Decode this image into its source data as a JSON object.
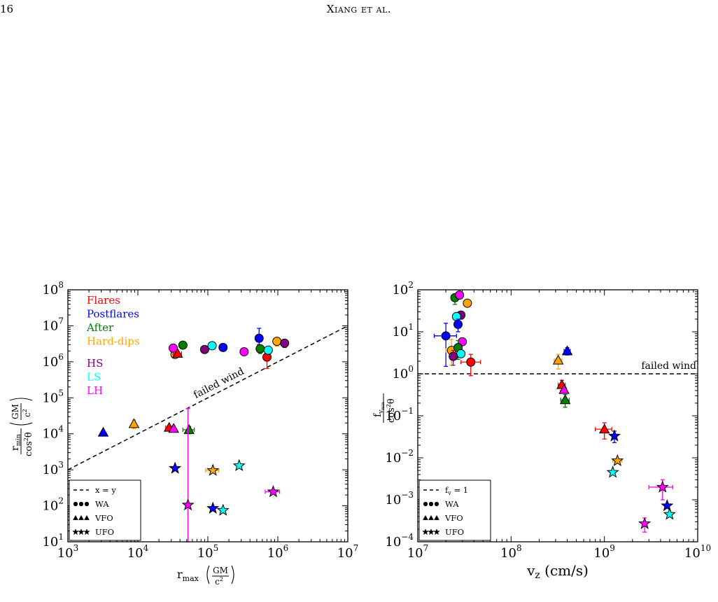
{
  "page": {
    "number": "16",
    "running_head": "Xiang et al."
  },
  "chart_data": [
    {
      "type": "scatter",
      "xscale": "log",
      "yscale": "log",
      "xlim": [
        1000,
        10000000
      ],
      "ylim": [
        10,
        100000000
      ],
      "x_ticks": [
        {
          "v": 1000,
          "b": "10",
          "e": "3"
        },
        {
          "v": 10000,
          "b": "10",
          "e": "4"
        },
        {
          "v": 100000,
          "b": "10",
          "e": "5"
        },
        {
          "v": 1000000,
          "b": "10",
          "e": "6"
        },
        {
          "v": 10000000,
          "b": "10",
          "e": "7"
        }
      ],
      "y_ticks": [
        {
          "v": 10,
          "b": "10",
          "e": "1"
        },
        {
          "v": 100,
          "b": "10",
          "e": "2"
        },
        {
          "v": 1000,
          "b": "10",
          "e": "3"
        },
        {
          "v": 10000,
          "b": "10",
          "e": "4"
        },
        {
          "v": 100000,
          "b": "10",
          "e": "5"
        },
        {
          "v": 1000000,
          "b": "10",
          "e": "6"
        },
        {
          "v": 10000000,
          "b": "10",
          "e": "7"
        },
        {
          "v": 100000000,
          "b": "10",
          "e": "8"
        }
      ],
      "xlabel": {
        "base": "r",
        "sub": "max",
        "frac_num": "GM",
        "frac_den": "c",
        "frac_den_sup": "2"
      },
      "ylabel": {
        "base": "r",
        "sub": "min",
        "frac_num": "GM",
        "frac_den": "c",
        "frac_den_sup": "2",
        "den": "cos",
        "den_sup": "2",
        "den_tail": "θ"
      },
      "reference_line": {
        "style": "dashed",
        "label": "failed wind",
        "x": [
          1000,
          10000000
        ],
        "y": [
          1000,
          10000000
        ]
      },
      "group_legend": {
        "placement": "top-left",
        "entries": [
          {
            "label": "Flares",
            "color": "#ff0000"
          },
          {
            "label": "Postflares",
            "color": "#0000ff"
          },
          {
            "label": "After",
            "color": "#008000"
          },
          {
            "label": "Hard-dips",
            "color": "#ffa500"
          },
          {
            "label": "HS",
            "color": "#800080"
          },
          {
            "label": "LS",
            "color": "#00ffff"
          },
          {
            "label": "LH",
            "color": "#ff00ff"
          }
        ]
      },
      "marker_legend": {
        "placement": "lower-left",
        "entries": [
          {
            "label": "x = y",
            "kind": "line"
          },
          {
            "label": "WA",
            "kind": "circle"
          },
          {
            "label": "VFO",
            "kind": "triangle"
          },
          {
            "label": "UFO",
            "kind": "star"
          }
        ]
      },
      "points": [
        {
          "g": "Flares",
          "m": "circle",
          "x": 700000,
          "y": 1350000,
          "yerr": [
            700000,
            800000
          ]
        },
        {
          "g": "Postflares",
          "m": "circle",
          "x": 540000,
          "y": 4500000,
          "yerr": [
            1500000,
            4000000
          ]
        },
        {
          "g": "Postflares",
          "m": "circle",
          "x": 165000,
          "y": 2500000
        },
        {
          "g": "After",
          "m": "circle",
          "x": 44000,
          "y": 2900000
        },
        {
          "g": "After",
          "m": "circle",
          "x": 560000,
          "y": 2300000,
          "yerr": [
            600000,
            600000
          ]
        },
        {
          "g": "Hard-dips",
          "m": "circle",
          "x": 34000,
          "y": 1600000
        },
        {
          "g": "Hard-dips",
          "m": "circle",
          "x": 970000,
          "y": 3700000,
          "yerr": [
            1000000,
            800000
          ]
        },
        {
          "g": "HS",
          "m": "circle",
          "x": 90000,
          "y": 2200000
        },
        {
          "g": "HS",
          "m": "circle",
          "x": 1250000,
          "y": 3300000,
          "yerr": [
            800000,
            800000
          ]
        },
        {
          "g": "LS",
          "m": "circle",
          "x": 115000,
          "y": 2800000
        },
        {
          "g": "LS",
          "m": "circle",
          "x": 730000,
          "y": 2100000
        },
        {
          "g": "LH",
          "m": "circle",
          "x": 32000,
          "y": 2400000
        },
        {
          "g": "LH",
          "m": "circle",
          "x": 330000,
          "y": 1900000
        },
        {
          "g": "Postflares",
          "m": "triangle",
          "x": 3200,
          "y": 11000
        },
        {
          "g": "Hard-dips",
          "m": "triangle",
          "x": 8800,
          "y": 19000,
          "yerr": [
            5000,
            5000
          ]
        },
        {
          "g": "Flares",
          "m": "triangle",
          "x": 28000,
          "y": 15000,
          "xerr": [
            3000,
            3000
          ]
        },
        {
          "g": "LH",
          "m": "triangle",
          "x": 32500,
          "y": 14000
        },
        {
          "g": "After",
          "m": "triangle",
          "x": 54000,
          "y": 13000,
          "xerr": [
            10000,
            10000
          ],
          "yerr": [
            3000,
            3000
          ]
        },
        {
          "g": "Flares",
          "m": "triangle",
          "x": 37000,
          "y": 1700000,
          "xerr": [
            5000,
            5000
          ]
        },
        {
          "g": "Postflares",
          "m": "star",
          "x": 34000,
          "y": 1100
        },
        {
          "g": "Hard-dips",
          "m": "star",
          "x": 118000,
          "y": 960,
          "xerr": [
            25000,
            25000
          ]
        },
        {
          "g": "LS",
          "m": "star",
          "x": 280000,
          "y": 1300
        },
        {
          "g": "LH",
          "m": "star",
          "x": 860000,
          "y": 245,
          "xerr": [
            200000,
            200000
          ]
        },
        {
          "g": "LH",
          "m": "star",
          "x": 52000,
          "y": 105,
          "yerr": [
            50000,
            50000
          ]
        },
        {
          "g": "Postflares",
          "m": "star",
          "x": 118000,
          "y": 85
        },
        {
          "g": "LS",
          "m": "star",
          "x": 165000,
          "y": 75
        }
      ]
    },
    {
      "type": "scatter",
      "xscale": "log",
      "yscale": "log",
      "xlim": [
        10000000,
        10000000000
      ],
      "ylim": [
        0.0001,
        100
      ],
      "x_ticks": [
        {
          "v": 10000000,
          "b": "10",
          "e": "7"
        },
        {
          "v": 100000000,
          "b": "10",
          "e": "8"
        },
        {
          "v": 1000000000,
          "b": "10",
          "e": "9"
        },
        {
          "v": 10000000000,
          "b": "10",
          "e": "10"
        }
      ],
      "y_ticks": [
        {
          "v": 0.0001,
          "b": "10",
          "e": "−4"
        },
        {
          "v": 0.001,
          "b": "10",
          "e": "−3"
        },
        {
          "v": 0.01,
          "b": "10",
          "e": "−2"
        },
        {
          "v": 0.1,
          "b": "10",
          "e": "−1"
        },
        {
          "v": 1,
          "b": "10",
          "e": "0"
        },
        {
          "v": 10,
          "b": "10",
          "e": "1"
        },
        {
          "v": 100,
          "b": "10",
          "e": "2"
        }
      ],
      "xlabel": {
        "text": "v",
        "sub": "z",
        "tail": " (cm/s)"
      },
      "ylabel": {
        "base": "f",
        "sub": "v",
        "subsub": "min",
        "den": "cos",
        "den_sup": "2",
        "den_tail": "θ"
      },
      "reference_line": {
        "style": "dashed",
        "label": "failed wind",
        "x": [
          10000000,
          10000000000
        ],
        "y": [
          1,
          1
        ]
      },
      "marker_legend": {
        "placement": "lower-left",
        "entries": [
          {
            "label": "f",
            "sub": "v",
            "tail": " = 1",
            "kind": "line"
          },
          {
            "label": "WA",
            "kind": "circle"
          },
          {
            "label": "VFO",
            "kind": "triangle"
          },
          {
            "label": "UFO",
            "kind": "star"
          }
        ]
      },
      "points": [
        {
          "g": "After",
          "m": "circle",
          "x": 25000000,
          "y": 65,
          "yerr": [
            20,
            15
          ]
        },
        {
          "g": "LH",
          "m": "circle",
          "x": 28000000,
          "y": 75
        },
        {
          "g": "Hard-dips",
          "m": "circle",
          "x": 34000000,
          "y": 48
        },
        {
          "g": "HS",
          "m": "circle",
          "x": 29000000,
          "y": 25,
          "yerr": [
            5,
            5
          ]
        },
        {
          "g": "LS",
          "m": "circle",
          "x": 26000000,
          "y": 23
        },
        {
          "g": "Postflares",
          "m": "circle",
          "x": 27000000,
          "y": 15,
          "yerr": [
            5,
            5
          ]
        },
        {
          "g": "Postflares",
          "m": "circle",
          "x": 20000000,
          "y": 8,
          "xerr": [
            5000000,
            6000000
          ],
          "yerr": [
            6.5,
            8
          ]
        },
        {
          "g": "LH",
          "m": "circle",
          "x": 30000000,
          "y": 5.8
        },
        {
          "g": "Hard-dips",
          "m": "circle",
          "x": 23000000,
          "y": 3.6,
          "xerr": [
            3000000,
            3000000
          ],
          "yerr": [
            2,
            3
          ]
        },
        {
          "g": "After",
          "m": "circle",
          "x": 27000000,
          "y": 4.2,
          "yerr": [
            2,
            2
          ]
        },
        {
          "g": "LS",
          "m": "circle",
          "x": 29000000,
          "y": 3.0
        },
        {
          "g": "HS",
          "m": "circle",
          "x": 24000000,
          "y": 2.6,
          "yerr": [
            1,
            1
          ]
        },
        {
          "g": "Flares",
          "m": "circle",
          "x": 37000000,
          "y": 1.9,
          "xerr": [
            8000000,
            10000000
          ],
          "yerr": [
            1,
            1
          ]
        },
        {
          "g": "Postflares",
          "m": "triangle",
          "x": 400000000,
          "y": 3.5,
          "xerr": [
            30000000,
            30000000
          ],
          "yerr": [
            0.7,
            0.7
          ]
        },
        {
          "g": "Hard-dips",
          "m": "triangle",
          "x": 320000000,
          "y": 2.1,
          "xerr": [
            30000000,
            30000000
          ],
          "yerr": [
            0.8,
            0.8
          ]
        },
        {
          "g": "Flares",
          "m": "triangle",
          "x": 350000000,
          "y": 0.55,
          "xerr": [
            30000000,
            30000000
          ],
          "yerr": [
            0.15,
            0.15
          ]
        },
        {
          "g": "LH",
          "m": "triangle",
          "x": 370000000,
          "y": 0.42
        },
        {
          "g": "After",
          "m": "triangle",
          "x": 380000000,
          "y": 0.24,
          "xerr": [
            40000000,
            40000000
          ],
          "yerr": [
            0.08,
            0.08
          ]
        },
        {
          "g": "Flares",
          "m": "triangle",
          "x": 1000000000,
          "y": 0.048,
          "xerr": [
            200000000,
            200000000
          ],
          "yerr": [
            0.02,
            0.02
          ]
        },
        {
          "g": "Postflares",
          "m": "star",
          "x": 1280000000,
          "y": 0.033,
          "yerr": [
            0.01,
            0.01
          ]
        },
        {
          "g": "Hard-dips",
          "m": "star",
          "x": 1380000000,
          "y": 0.0085,
          "xerr": [
            150000000,
            150000000
          ]
        },
        {
          "g": "LS",
          "m": "star",
          "x": 1230000000,
          "y": 0.0045
        },
        {
          "g": "LH",
          "m": "star",
          "x": 4200000000,
          "y": 0.002,
          "xerr": [
            1200000000,
            1200000000
          ],
          "yerr": [
            0.001,
            0.001
          ]
        },
        {
          "g": "Postflares",
          "m": "star",
          "x": 4700000000,
          "y": 0.00072
        },
        {
          "g": "LS",
          "m": "star",
          "x": 5000000000,
          "y": 0.00045
        },
        {
          "g": "LH",
          "m": "star",
          "x": 2700000000,
          "y": 0.00027,
          "yerr": [
            0.0001,
            0.0001
          ]
        }
      ]
    }
  ]
}
